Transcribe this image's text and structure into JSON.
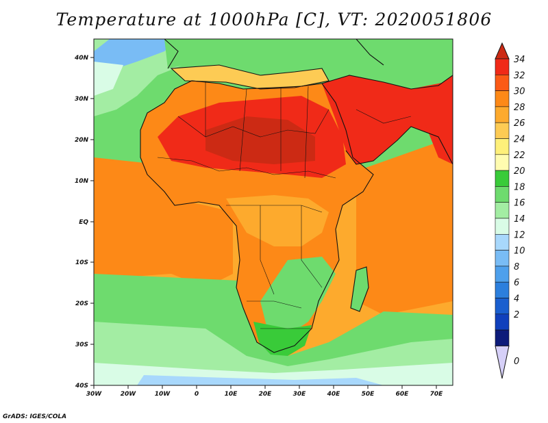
{
  "title": "Temperature at 1000hPa [C], VT: 2020051806",
  "credit": "GrADS: IGES/COLA",
  "axes": {
    "x_ticks": [
      "30W",
      "20W",
      "10W",
      "0",
      "10E",
      "20E",
      "30E",
      "40E",
      "50E",
      "60E",
      "70E"
    ],
    "y_ticks": [
      "40N",
      "30N",
      "20N",
      "10N",
      "EQ",
      "10S",
      "20S",
      "30S",
      "40S"
    ]
  },
  "colorbar": {
    "labels": [
      "34",
      "32",
      "30",
      "28",
      "26",
      "24",
      "22",
      "20",
      "18",
      "16",
      "14",
      "12",
      "10",
      "8",
      "6",
      "4",
      "2",
      "0"
    ],
    "colors": [
      "#f02a18",
      "#fb5a16",
      "#fd8917",
      "#fdaa2d",
      "#fdcb54",
      "#fef07a",
      "#fffcb0",
      "#39cb39",
      "#6edb6e",
      "#a3eda3",
      "#d9fce6",
      "#a8d8fc",
      "#79bcf5",
      "#4ea0ec",
      "#2c7fdd",
      "#1a5fcf",
      "#1040bc",
      "#0d1b7a"
    ],
    "top_arrow_color": "#cc2a14",
    "bottom_arrow_color": "#d6d0f8"
  },
  "colors": {
    "ocean_north": "#6edb6e",
    "ocean_tropical": "#fdaa2d",
    "ocean_south": "#a3eda3",
    "land_hot": "#f02a18",
    "land_warm": "#fd8917",
    "land_cool": "#6edb6e"
  }
}
